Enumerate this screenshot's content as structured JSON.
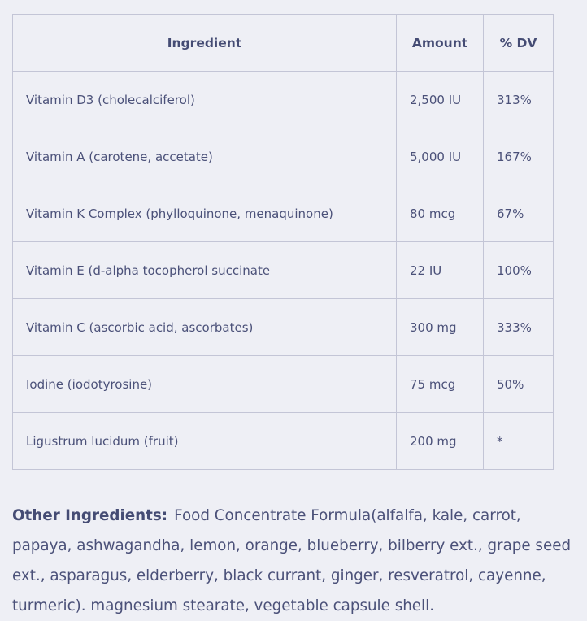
{
  "table": {
    "headers": [
      "Ingredient",
      "Amount",
      "% DV"
    ],
    "rows": [
      [
        "Vitamin D3 (cholecalciferol)",
        "2,500 IU",
        "313%"
      ],
      [
        "Vitamin A (carotene, accetate)",
        "5,000 IU",
        "167%"
      ],
      [
        "Vitamin K Complex (phylloquinone, menaquinone)",
        "80 mcg",
        "67%"
      ],
      [
        "Vitamin E (d-alpha tocopherol succinate",
        "22 IU",
        "100%"
      ],
      [
        "Vitamin C (ascorbic acid, ascorbates)",
        "300 mg",
        "333%"
      ],
      [
        "Iodine (iodotyrosine)",
        "75 mcg",
        "50%"
      ],
      [
        "Ligustrum lucidum (fruit)",
        "200 mg",
        "*"
      ]
    ]
  },
  "other_ingredients": {
    "label": "Other Ingredients:",
    "text": "Food Concentrate Formula(alfalfa, kale, carrot, papaya, ashwagandha, lemon, orange, blueberry, bilberry ext., grape seed ext., asparagus, elderberry, black currant, ginger, resveratrol, cayenne, turmeric). magnesium stearate, vegetable capsule shell."
  }
}
